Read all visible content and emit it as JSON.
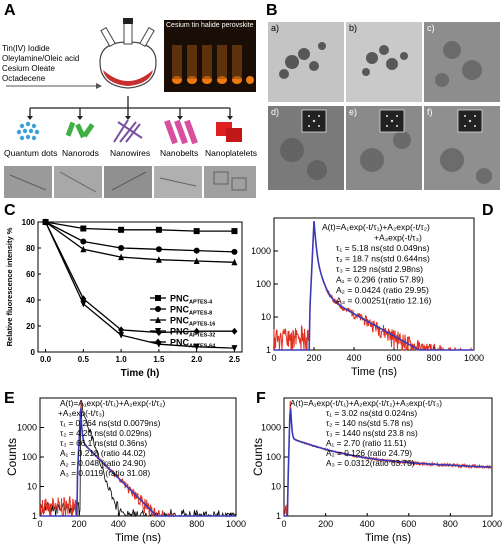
{
  "panel_a": {
    "label": "A",
    "reagents": [
      "Tin(IV) Iodide",
      "Oleylamine/Oleic acid",
      "Cesium Oleate",
      "Octadecene"
    ],
    "product_title_line1": "Cesium tin halide perovskite",
    "morphologies": [
      "Quantum dots",
      "Nanorods",
      "Nanowires",
      "Nanobelts",
      "Nanoplatelets"
    ],
    "colors": {
      "dots": "#3aa0d8",
      "rods": "#3cb043",
      "wires": "#7a4fa0",
      "belts": "#d94fa0",
      "platelets": "#e02020"
    }
  },
  "panel_b": {
    "label": "B",
    "subpanels": [
      "a)",
      "b)",
      "c)",
      "d)",
      "e)",
      "f)"
    ]
  },
  "chart_c": {
    "label": "C",
    "chart_data": {
      "type": "line",
      "x": [
        0.0,
        0.5,
        1.0,
        1.5,
        2.0,
        2.5
      ],
      "xlabel": "Time (h)",
      "ylabel": "Relative fluorescence intensity %",
      "xlim": [
        -0.1,
        2.6
      ],
      "ylim": [
        0,
        100
      ],
      "xticks": [
        "0.0",
        "0.5",
        "1.0",
        "1.5",
        "2.0",
        "2.5"
      ],
      "yticks": [
        "0",
        "20",
        "40",
        "60",
        "80",
        "100"
      ],
      "legend_position": "right",
      "series": [
        {
          "name": "PNC",
          "sub": "APTES-4",
          "marker": "square",
          "values": [
            100,
            95,
            94,
            94,
            93,
            93
          ]
        },
        {
          "name": "PNC",
          "sub": "APTES-8",
          "marker": "circle",
          "values": [
            100,
            85,
            80,
            79,
            78,
            77
          ]
        },
        {
          "name": "PNC",
          "sub": "APTES-16",
          "marker": "triangle-up",
          "values": [
            100,
            79,
            73,
            71,
            70,
            69
          ]
        },
        {
          "name": "PNC",
          "sub": "APTES-32",
          "marker": "triangle-down",
          "values": [
            100,
            37,
            13,
            6,
            4,
            3
          ]
        },
        {
          "name": "PNC",
          "sub": "APTES-64",
          "marker": "diamond",
          "values": [
            100,
            41,
            17,
            15,
            16,
            16
          ]
        }
      ]
    }
  },
  "chart_d": {
    "label": "D",
    "equation_line1": "A(t)=A₁exp(-t/τ₁)+A₂exp(-t/τ₂)",
    "equation_line2": "+A₃exp(-t/τ₃)",
    "params": [
      "τ₁ = 5.18 ns(std 0.049ns)",
      "τ₂ = 18.7 ns(std 0.644ns)",
      "τ₃ = 129 ns(std   2.98ns)",
      "A₁ = 0.296   (ratio 57.89)",
      "A₂ = 0.0424 (ratio 29.95)",
      "A₃ = 0.00251(ratio 12.16)"
    ],
    "chart_data": {
      "type": "line",
      "xlabel": "Time (ns)",
      "ylabel": "",
      "xlim": [
        0,
        1000
      ],
      "ylim": [
        1,
        10000
      ],
      "yscale": "log",
      "xticks": [
        "0",
        "200",
        "400",
        "600",
        "800",
        "1000"
      ],
      "yticks": [
        "1",
        "10",
        "100",
        "1000"
      ],
      "decay": {
        "peak_time": 200,
        "peak_counts": 8000,
        "A1": 0.296,
        "tau1": 5.18,
        "A2": 0.0424,
        "tau2": 18.7,
        "A3": 0.00251,
        "tau3": 129
      }
    }
  },
  "chart_e": {
    "label": "E",
    "equation_line1": "A(t)=A₁exp(-t/τ₁)+A₂exp(-t/τ₂)",
    "equation_line2": "+A₃exp(-t/τ₃)",
    "params": [
      "τ₁ = 0.264 ns(std 0.0079ns)",
      "τ₂ = 4.20 ns(std 0.029ns)",
      "τ₃ = 66.1 ns(std 0.36ns)",
      "A₁ = 0.218   (ratio 44.02)",
      "A₂ = 0.048   (ratio 24.90)",
      "A₃ = 0.0119  (ratio 31.08)"
    ],
    "chart_data": {
      "type": "line",
      "xlabel": "Time (ns)",
      "ylabel": "Counts",
      "xlim": [
        0,
        1000
      ],
      "ylim": [
        1,
        10000
      ],
      "yscale": "log",
      "xticks": [
        "0",
        "200",
        "400",
        "600",
        "800",
        "1000"
      ],
      "yticks": [
        "1",
        "10",
        "100",
        "1000"
      ],
      "decay": {
        "peak_time": 210,
        "peak_counts": 8000,
        "A1": 0.218,
        "tau1": 0.264,
        "A2": 0.048,
        "tau2": 4.2,
        "A3": 0.0119,
        "tau3": 66.1
      }
    }
  },
  "chart_f": {
    "label": "F",
    "equation_line1": "A(t)=A₁exp(-t/τ₁)+A₂exp(-t/τ₂)+A₃exp(-t/τ₃)",
    "params": [
      "τ₁ = 3.02 ns(std 0.024ns)",
      "τ₂ = 140 ns(std 5.78 ns)",
      "τ₃ = 1440 ns(std 23.8 ns)",
      "A₁ = 2.70   (ratio 11.51)",
      "A₂ = 0.126 (ratio 24.79)",
      "A₃ = 0.0312(ratio 63.70)"
    ],
    "chart_data": {
      "type": "line",
      "xlabel": "Time (ns)",
      "ylabel": "Counts",
      "xlim": [
        0,
        1000
      ],
      "ylim": [
        1,
        10000
      ],
      "yscale": "log",
      "xticks": [
        "0",
        "200",
        "400",
        "600",
        "800",
        "1000"
      ],
      "yticks": [
        "1",
        "10",
        "100",
        "1000"
      ],
      "decay": {
        "peak_time": 30,
        "peak_counts": 8000,
        "A1": 2.7,
        "tau1": 3.02,
        "A2": 0.126,
        "tau2": 140,
        "A3": 0.0312,
        "tau3": 1440
      }
    }
  }
}
